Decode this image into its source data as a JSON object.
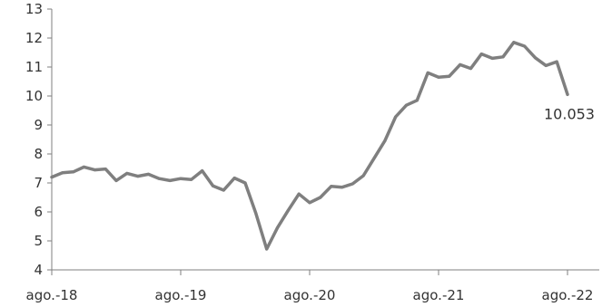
{
  "chart_data": {
    "type": "line",
    "title": "",
    "xlabel": "",
    "ylabel": "",
    "ylim": [
      4,
      13
    ],
    "y_ticks": [
      4,
      5,
      6,
      7,
      8,
      9,
      10,
      11,
      12,
      13
    ],
    "x_tick_labels": [
      "ago.-18",
      "ago.-19",
      "ago.-20",
      "ago.-21",
      "ago.-22"
    ],
    "x_start": "2018-08",
    "x_end": "2022-08",
    "grid": false,
    "legend": "none",
    "series": [
      {
        "color": "#7f7f7f",
        "values": [
          7.2,
          7.35,
          7.38,
          7.55,
          7.45,
          7.48,
          7.08,
          7.33,
          7.23,
          7.3,
          7.15,
          7.08,
          7.15,
          7.12,
          7.42,
          6.9,
          6.75,
          7.17,
          7.0,
          5.95,
          4.72,
          5.45,
          6.05,
          6.62,
          6.32,
          6.5,
          6.88,
          6.85,
          6.97,
          7.25,
          7.85,
          8.45,
          9.28,
          9.68,
          9.85,
          10.8,
          10.65,
          10.68,
          11.08,
          10.95,
          11.45,
          11.3,
          11.35,
          11.85,
          11.72,
          11.32,
          11.05,
          11.18,
          10.053
        ]
      }
    ],
    "data_labels": [
      {
        "series": 0,
        "index": 48,
        "text": "10.053"
      }
    ]
  }
}
